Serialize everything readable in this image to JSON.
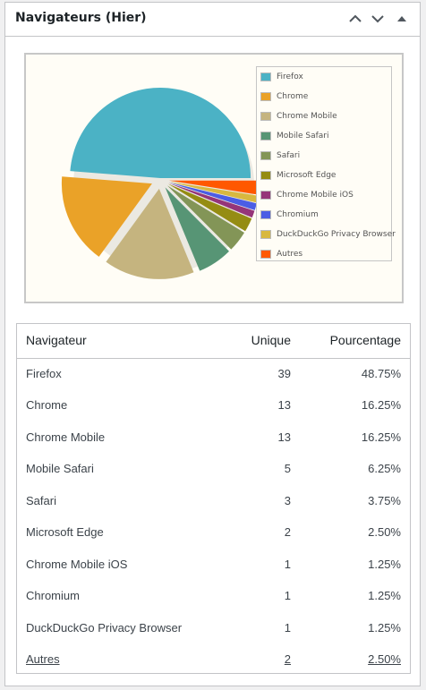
{
  "widget": {
    "title": "Navigateurs (Hier)"
  },
  "table": {
    "headers": [
      "Navigateur",
      "Unique",
      "Pourcentage"
    ],
    "rows": [
      {
        "name": "Firefox",
        "unique": "39",
        "percent": "48.75%"
      },
      {
        "name": "Chrome",
        "unique": "13",
        "percent": "16.25%"
      },
      {
        "name": "Chrome Mobile",
        "unique": "13",
        "percent": "16.25%"
      },
      {
        "name": "Mobile Safari",
        "unique": "5",
        "percent": "6.25%"
      },
      {
        "name": "Safari",
        "unique": "3",
        "percent": "3.75%"
      },
      {
        "name": "Microsoft Edge",
        "unique": "2",
        "percent": "2.50%"
      },
      {
        "name": "Chrome Mobile iOS",
        "unique": "1",
        "percent": "1.25%"
      },
      {
        "name": "Chromium",
        "unique": "1",
        "percent": "1.25%"
      },
      {
        "name": "DuckDuckGo Privacy Browser",
        "unique": "1",
        "percent": "1.25%"
      },
      {
        "name": "Autres",
        "unique": "2",
        "percent": "2.50%"
      }
    ]
  },
  "chart_data": {
    "type": "pie",
    "title": "",
    "legend_position": "right",
    "categories": [
      "Firefox",
      "Chrome",
      "Chrome Mobile",
      "Mobile Safari",
      "Safari",
      "Microsoft Edge",
      "Chrome Mobile iOS",
      "Chromium",
      "DuckDuckGo Privacy Browser",
      "Autres"
    ],
    "values": [
      39,
      13,
      13,
      5,
      3,
      2,
      1,
      1,
      1,
      2
    ],
    "colors": [
      "#4bb2c5",
      "#eaa228",
      "#c5b47f",
      "#579575",
      "#839557",
      "#958c12",
      "#953579",
      "#4b5de4",
      "#d8b83f",
      "#ff5800"
    ]
  }
}
